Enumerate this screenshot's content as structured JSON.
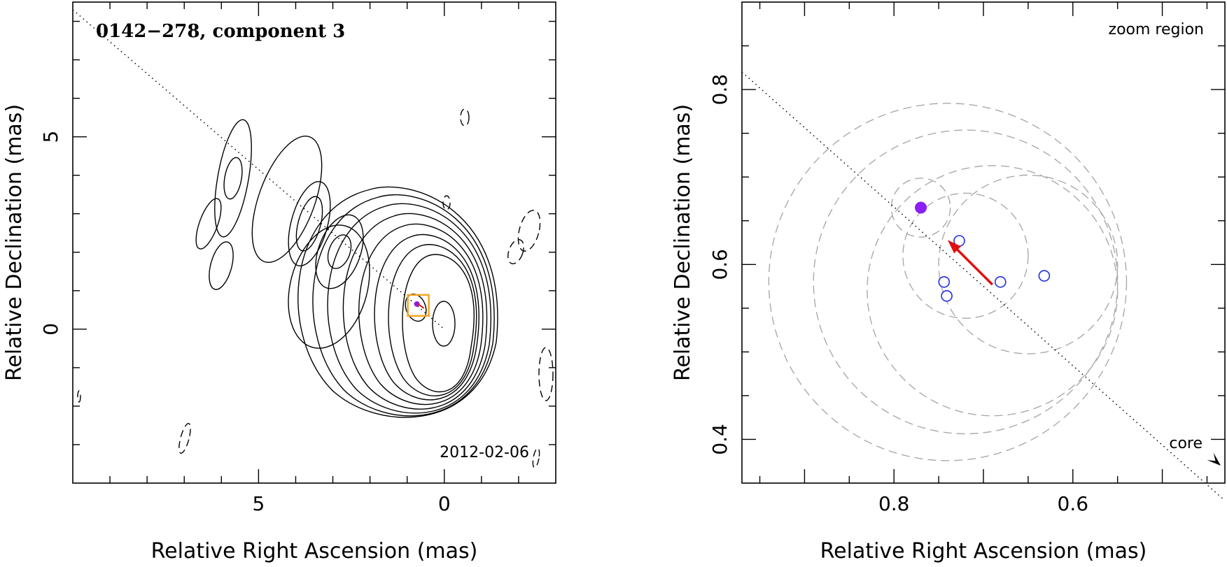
{
  "chart_data": [
    {
      "type": "contour",
      "title": "0142−278, component 3",
      "epoch_label": "2012-02-06",
      "xlabel": "Relative Right Ascension (mas)",
      "ylabel": "Relative Declination (mas)",
      "xlim": [
        10,
        -3
      ],
      "ylim": [
        -4,
        8.5
      ],
      "x_axis_reversed": true,
      "xticks": [
        {
          "value": 5,
          "label": "5"
        },
        {
          "value": 0,
          "label": "0"
        }
      ],
      "yticks": [
        {
          "value": 5,
          "label": "5"
        },
        {
          "value": 0,
          "label": "0"
        }
      ],
      "component_marker": {
        "x": 0.7,
        "y": 0.6,
        "box_color": "#f5a623",
        "point_color": "#8b1ef5"
      },
      "jet_axis": {
        "from": [
          10,
          8.3
        ],
        "to": [
          0.0,
          0.0
        ],
        "style": "dotted"
      },
      "contour_color": "#000000"
    },
    {
      "type": "scatter",
      "annotation": "zoom region",
      "core_label": "core",
      "xlabel": "Relative Right Ascension (mas)",
      "ylabel": "Relative Declination (mas)",
      "xlim": [
        0.97,
        0.43
      ],
      "ylim": [
        0.35,
        0.9
      ],
      "x_axis_reversed": true,
      "xticks": [
        {
          "value": 0.8,
          "label": "0.8"
        },
        {
          "value": 0.6,
          "label": "0.6"
        }
      ],
      "yticks": [
        {
          "value": 0.8,
          "label": "0.8"
        },
        {
          "value": 0.6,
          "label": "0.6"
        },
        {
          "value": 0.4,
          "label": "0.4"
        }
      ],
      "filled_point": {
        "x": 0.77,
        "y": 0.665,
        "color": "#8b1ef5"
      },
      "open_points": {
        "color": "#1f2fe0",
        "points": [
          {
            "x": 0.727,
            "y": 0.627
          },
          {
            "x": 0.744,
            "y": 0.58
          },
          {
            "x": 0.741,
            "y": 0.564
          },
          {
            "x": 0.681,
            "y": 0.58
          },
          {
            "x": 0.632,
            "y": 0.587
          }
        ]
      },
      "velocity_arrow": {
        "from": [
          0.69,
          0.577
        ],
        "to": [
          0.74,
          0.628
        ],
        "color": "#e01010"
      },
      "jet_axis": {
        "from": [
          0.97,
          0.82
        ],
        "to": [
          0.43,
          0.33
        ],
        "style": "dotted"
      },
      "error_circles": {
        "color": "#aaaaaa",
        "circles": [
          {
            "cx": 0.77,
            "cy": 0.665,
            "r": 0.033
          },
          {
            "cx": 0.72,
            "cy": 0.61,
            "r": 0.07
          },
          {
            "cx": 0.65,
            "cy": 0.6,
            "r": 0.1
          },
          {
            "cx": 0.69,
            "cy": 0.57,
            "r": 0.14
          },
          {
            "cx": 0.72,
            "cy": 0.58,
            "r": 0.17
          },
          {
            "cx": 0.74,
            "cy": 0.58,
            "r": 0.2
          }
        ]
      }
    }
  ]
}
